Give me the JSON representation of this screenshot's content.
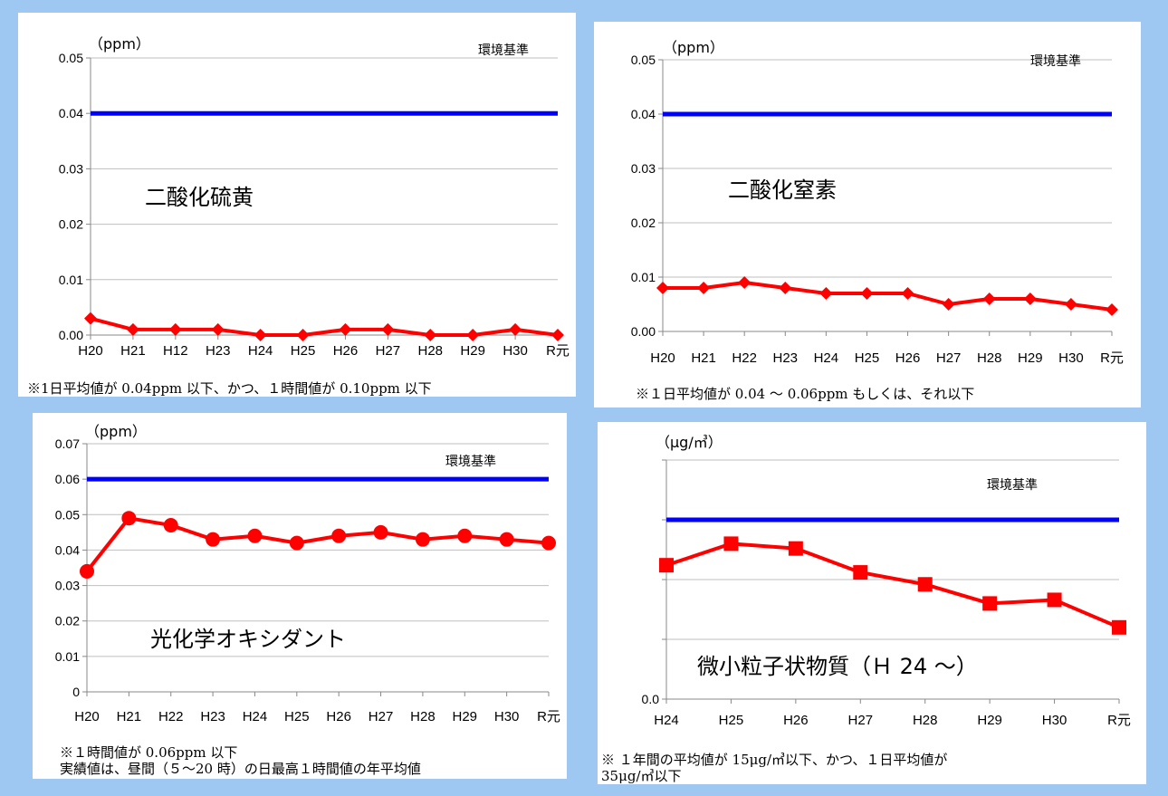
{
  "colors": {
    "background": "#9ec7f2",
    "standard_line": "#0000ff",
    "series": "#ff0000",
    "grid": "#bfbfbf"
  },
  "chart_data": [
    {
      "type": "line",
      "title": "二酸化硫黄",
      "unit_label": "（ppm）",
      "standard_label": "環境基準",
      "standard_value": 0.04,
      "x": [
        "H20",
        "H21",
        "H12",
        "H23",
        "H24",
        "H25",
        "H26",
        "H27",
        "H28",
        "H29",
        "H30",
        "R元"
      ],
      "values": [
        0.003,
        0.001,
        0.001,
        0.001,
        0.0,
        0.0,
        0.001,
        0.001,
        0.0,
        0.0,
        0.001,
        0.0
      ],
      "marker": "diamond",
      "ylim": [
        0,
        0.05
      ],
      "yticks": [
        "0.00",
        "0.01",
        "0.02",
        "0.03",
        "0.04",
        "0.05"
      ],
      "grid": true,
      "note": "※1日平均値が 0.04ppm 以下、かつ、１時間値が 0.10ppm 以下"
    },
    {
      "type": "line",
      "title": "二酸化窒素",
      "unit_label": "（ppm）",
      "standard_label": "環境基準",
      "standard_value": 0.04,
      "x": [
        "H20",
        "H21",
        "H22",
        "H23",
        "H24",
        "H25",
        "H26",
        "H27",
        "H28",
        "H29",
        "H30",
        "R元"
      ],
      "values": [
        0.008,
        0.008,
        0.009,
        0.008,
        0.007,
        0.007,
        0.007,
        0.005,
        0.006,
        0.006,
        0.005,
        0.004
      ],
      "marker": "diamond",
      "ylim": [
        0,
        0.05
      ],
      "yticks": [
        "0.00",
        "0.01",
        "0.02",
        "0.03",
        "0.04",
        "0.05"
      ],
      "grid": true,
      "note": "※１日平均値が 0.04 ～ 0.06ppm もしくは、それ以下"
    },
    {
      "type": "line",
      "title": "光化学オキシダント",
      "unit_label": "（ppm）",
      "standard_label": "環境基準",
      "standard_value": 0.06,
      "x": [
        "H20",
        "H21",
        "H22",
        "H23",
        "H24",
        "H25",
        "H26",
        "H27",
        "H28",
        "H29",
        "H30",
        "R元"
      ],
      "values": [
        0.034,
        0.049,
        0.047,
        0.043,
        0.044,
        0.042,
        0.044,
        0.045,
        0.043,
        0.044,
        0.043,
        0.042
      ],
      "marker": "circle",
      "ylim": [
        0,
        0.07
      ],
      "yticks": [
        "0",
        "0.01",
        "0.02",
        "0.03",
        "0.04",
        "0.05",
        "0.06",
        "0.07"
      ],
      "grid": true,
      "note": "※１時間値が 0.06ppm 以下\n実績値は、昼間（５～20 時）の日最高１時間値の年平均値"
    },
    {
      "type": "line",
      "title": "微小粒子状物質（Ｈ 24 ～）",
      "unit_label": "（μg/㎥）",
      "standard_label": "環境基準",
      "standard_value": 15,
      "x": [
        "H24",
        "H25",
        "H26",
        "H27",
        "H28",
        "H29",
        "H30",
        "R元"
      ],
      "values": [
        11.2,
        13.0,
        12.6,
        10.6,
        9.6,
        8.0,
        8.3,
        6.0
      ],
      "marker": "square",
      "ylim": [
        0,
        20
      ],
      "yticks": [
        "0.0",
        "",
        "",
        "",
        ""
      ],
      "grid": true,
      "note": "※ １年間の平均値が 15μg/㎥以下、かつ、１日平均値が\n35μg/㎥以下"
    }
  ]
}
